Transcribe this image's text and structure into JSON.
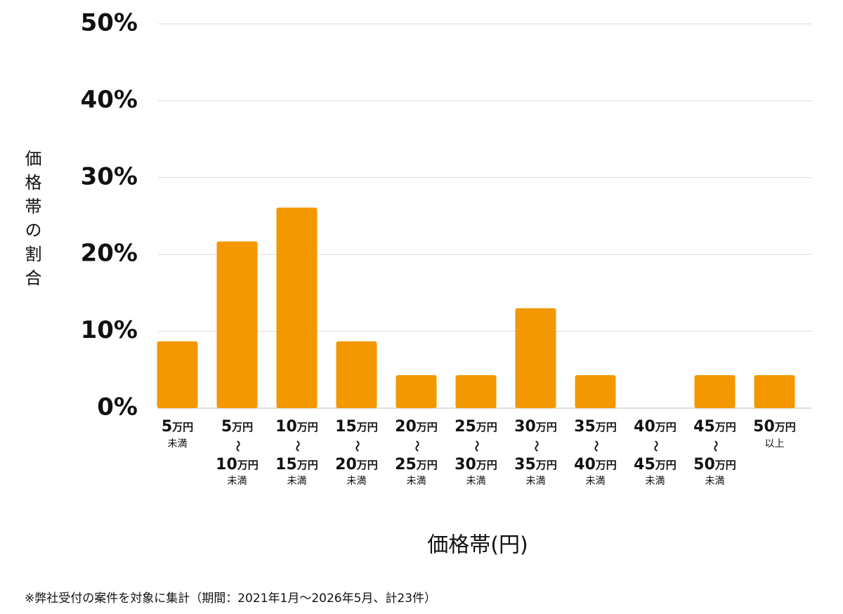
{
  "chart_data": {
    "type": "bar",
    "y_axis_label": "価格帯の割合",
    "x_axis_label": "価格帯(円)",
    "footnote": "※弊社受付の案件を対象に集計（期間：2021年1月〜2026年5月、計23件）",
    "categories": [
      [
        "5万円",
        "未満"
      ],
      [
        "5万円",
        "〜",
        "10万円",
        "未満"
      ],
      [
        "10万円",
        "〜",
        "15万円",
        "未満"
      ],
      [
        "15万円",
        "〜",
        "20万円",
        "未満"
      ],
      [
        "20万円",
        "〜",
        "25万円",
        "未満"
      ],
      [
        "25万円",
        "〜",
        "30万円",
        "未満"
      ],
      [
        "30万円",
        "〜",
        "35万円",
        "未満"
      ],
      [
        "35万円",
        "〜",
        "40万円",
        "未満"
      ],
      [
        "40万円",
        "〜",
        "45万円",
        "未満"
      ],
      [
        "45万円",
        "〜",
        "50万円",
        "未満"
      ],
      [
        "50万円",
        "以上"
      ]
    ],
    "values": [
      8.7,
      21.7,
      26.1,
      8.7,
      4.3,
      4.3,
      13.0,
      4.3,
      0,
      4.3,
      4.3
    ],
    "color": "#f39800",
    "ylim": [
      0,
      50
    ],
    "yticks": [
      {
        "value": 0,
        "label": "0%"
      },
      {
        "value": 10,
        "label": "10%"
      },
      {
        "value": 20,
        "label": "20%"
      },
      {
        "value": 30,
        "label": "30%"
      },
      {
        "value": 40,
        "label": "40%"
      },
      {
        "value": 50,
        "label": "50%"
      }
    ],
    "grid": true
  }
}
